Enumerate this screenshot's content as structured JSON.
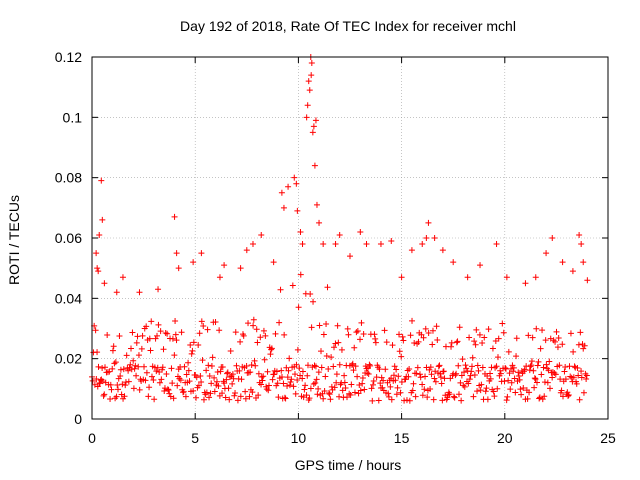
{
  "chart_data": {
    "type": "scatter",
    "title": "Day 192 of 2018, Rate Of TEC Index for receiver mchl",
    "xlabel": "GPS time / hours",
    "ylabel": "ROTI / TECUs",
    "xlim": [
      0,
      25
    ],
    "ylim": [
      0,
      0.12
    ],
    "xticks": [
      0,
      5,
      10,
      15,
      20,
      25
    ],
    "yticks": [
      0,
      0.02,
      0.04,
      0.06,
      0.08,
      0.1,
      0.12
    ],
    "xtick_labels": [
      "0",
      "5",
      "10",
      "15",
      "20",
      "25"
    ],
    "ytick_labels": [
      "0",
      "0.02",
      "0.04",
      "0.06",
      "0.08",
      "0.1",
      "0.12"
    ],
    "grid": true,
    "marker": "+",
    "color": "#ff0000",
    "series": [
      {
        "name": "ROTI",
        "points": [
          [
            0.2,
            0.055
          ],
          [
            0.25,
            0.05
          ],
          [
            0.3,
            0.049
          ],
          [
            0.35,
            0.061
          ],
          [
            0.45,
            0.079
          ],
          [
            0.5,
            0.066
          ],
          [
            0.6,
            0.045
          ],
          [
            1.2,
            0.042
          ],
          [
            1.5,
            0.047
          ],
          [
            2.3,
            0.042
          ],
          [
            3.2,
            0.043
          ],
          [
            4.0,
            0.067
          ],
          [
            4.1,
            0.055
          ],
          [
            4.2,
            0.05
          ],
          [
            4.9,
            0.052
          ],
          [
            5.3,
            0.055
          ],
          [
            6.2,
            0.047
          ],
          [
            6.4,
            0.051
          ],
          [
            7.2,
            0.05
          ],
          [
            7.5,
            0.056
          ],
          [
            7.8,
            0.058
          ],
          [
            8.2,
            0.061
          ],
          [
            8.8,
            0.052
          ],
          [
            9.2,
            0.075
          ],
          [
            9.3,
            0.07
          ],
          [
            9.5,
            0.077
          ],
          [
            9.8,
            0.08
          ],
          [
            9.9,
            0.078
          ],
          [
            9.95,
            0.069
          ],
          [
            10.1,
            0.062
          ],
          [
            10.2,
            0.058
          ],
          [
            10.4,
            0.1
          ],
          [
            10.45,
            0.104
          ],
          [
            10.5,
            0.112
          ],
          [
            10.55,
            0.109
          ],
          [
            10.6,
            0.12
          ],
          [
            10.62,
            0.114
          ],
          [
            10.65,
            0.118
          ],
          [
            10.7,
            0.095
          ],
          [
            10.75,
            0.097
          ],
          [
            10.85,
            0.099
          ],
          [
            10.8,
            0.084
          ],
          [
            10.9,
            0.071
          ],
          [
            11.0,
            0.065
          ],
          [
            11.2,
            0.058
          ],
          [
            11.8,
            0.058
          ],
          [
            12.0,
            0.061
          ],
          [
            12.5,
            0.054
          ],
          [
            13.0,
            0.062
          ],
          [
            13.3,
            0.058
          ],
          [
            14.0,
            0.058
          ],
          [
            14.5,
            0.059
          ],
          [
            15.0,
            0.047
          ],
          [
            15.5,
            0.056
          ],
          [
            16.0,
            0.058
          ],
          [
            16.2,
            0.06
          ],
          [
            16.3,
            0.065
          ],
          [
            16.6,
            0.06
          ],
          [
            17.0,
            0.056
          ],
          [
            17.5,
            0.052
          ],
          [
            18.2,
            0.047
          ],
          [
            18.8,
            0.051
          ],
          [
            19.6,
            0.058
          ],
          [
            20.1,
            0.047
          ],
          [
            21.0,
            0.045
          ],
          [
            21.5,
            0.047
          ],
          [
            22.0,
            0.055
          ],
          [
            22.3,
            0.06
          ],
          [
            22.8,
            0.052
          ],
          [
            23.3,
            0.049
          ],
          [
            23.6,
            0.061
          ],
          [
            23.7,
            0.058
          ],
          [
            23.8,
            0.052
          ],
          [
            24.0,
            0.046
          ]
        ],
        "baseline": {
          "x_start": 0.0,
          "x_end": 24.0,
          "x_step": 0.035,
          "median": 0.012,
          "lower_bound": 0.002,
          "typical_upper": 0.03,
          "peak_region_hours": [
            9.0,
            11.5
          ],
          "peak_region_upper": 0.045
        }
      }
    ]
  }
}
